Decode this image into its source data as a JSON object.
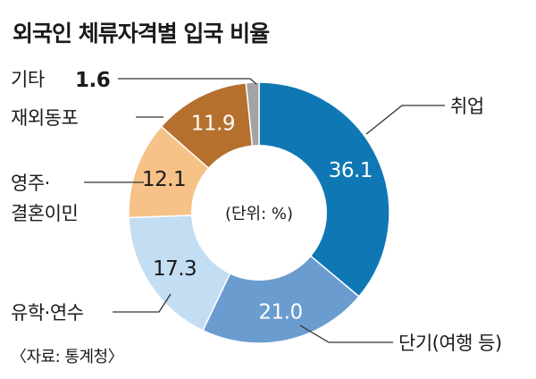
{
  "title": "외국인 체류자격별 입국 비율",
  "source": "〈자료: 통계청〉",
  "chart_data": {
    "type": "pie",
    "title": "외국인 체류자격별 입국 비율",
    "unit_label": "(단위: %)",
    "slices": [
      {
        "label": "취업",
        "value": 36.1,
        "value_text": "36.1",
        "color": "#0f78b4",
        "text_color": "#ffffff"
      },
      {
        "label": "단기(여행 등)",
        "value": 21.0,
        "value_text": "21.0",
        "color": "#6b9ccf",
        "text_color": "#ffffff"
      },
      {
        "label": "유학·연수",
        "value": 17.3,
        "value_text": "17.3",
        "color": "#c3ddf2",
        "text_color": "#1a1a1a"
      },
      {
        "label": "영주·\n결혼이민",
        "value": 12.1,
        "value_text": "12.1",
        "color": "#f6c287",
        "text_color": "#1a1a1a"
      },
      {
        "label": "재외동포",
        "value": 11.9,
        "value_text": "11.9",
        "color": "#b5702e",
        "text_color": "#ffffff"
      },
      {
        "label": "기타",
        "value": 1.6,
        "value_text": "1.6",
        "color": "#a3a3a3",
        "text_color": "#1a1a1a"
      }
    ]
  }
}
